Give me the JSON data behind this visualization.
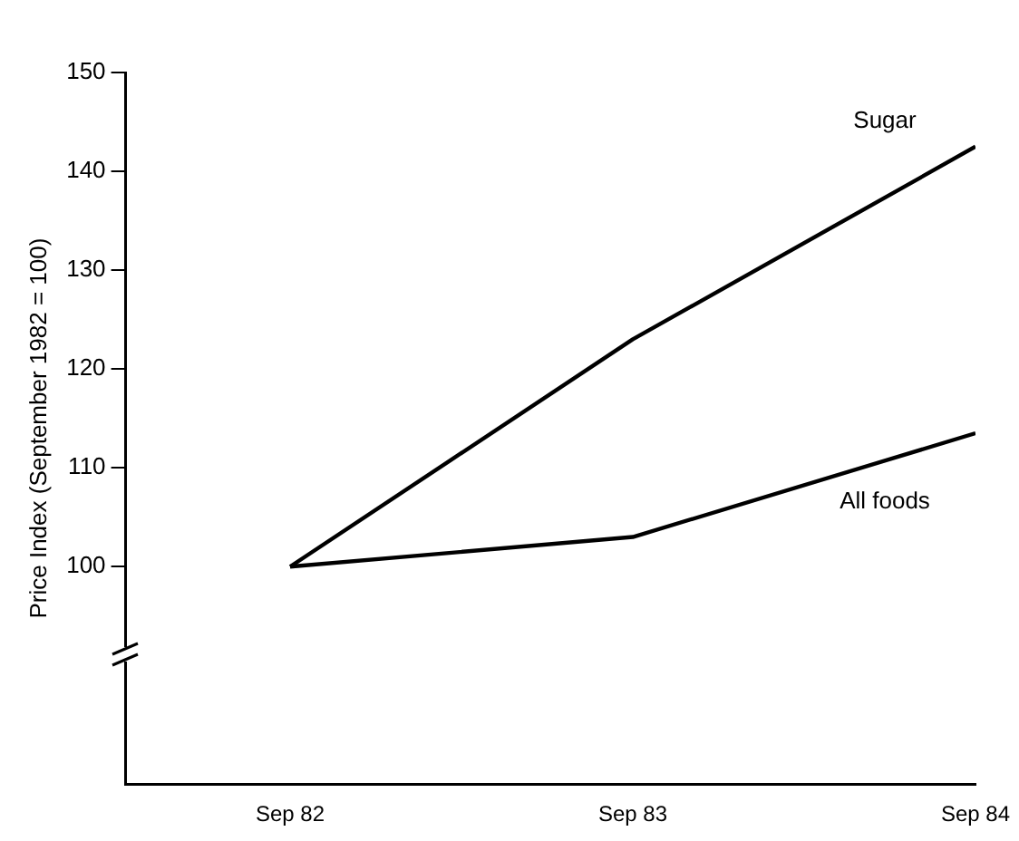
{
  "chart_data": {
    "type": "line",
    "ylabel": "Price Index (September 1982 = 100)",
    "categories": [
      "Sep 82",
      "Sep 83",
      "Sep 84"
    ],
    "series": [
      {
        "name": "Sugar",
        "color": "#000000",
        "values": [
          100,
          123,
          142.5
        ]
      },
      {
        "name": "All foods",
        "color": "#000000",
        "values": [
          100,
          103,
          113.5
        ]
      }
    ],
    "ylim": [
      78,
      150
    ],
    "yticks": [
      100,
      110,
      120,
      130,
      140,
      150
    ],
    "grid": false,
    "legend": false,
    "marker": "none",
    "line_style": "solid"
  }
}
